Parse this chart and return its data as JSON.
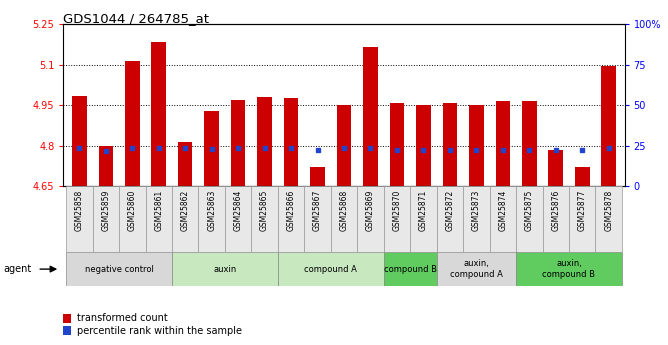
{
  "title": "GDS1044 / 264785_at",
  "samples": [
    "GSM25858",
    "GSM25859",
    "GSM25860",
    "GSM25861",
    "GSM25862",
    "GSM25863",
    "GSM25864",
    "GSM25865",
    "GSM25866",
    "GSM25867",
    "GSM25868",
    "GSM25869",
    "GSM25870",
    "GSM25871",
    "GSM25872",
    "GSM25873",
    "GSM25874",
    "GSM25875",
    "GSM25876",
    "GSM25877",
    "GSM25878"
  ],
  "bar_values": [
    4.985,
    4.8,
    5.115,
    5.185,
    4.815,
    4.93,
    4.97,
    4.98,
    4.975,
    4.72,
    4.95,
    5.165,
    4.96,
    4.95,
    4.96,
    4.95,
    4.965,
    4.965,
    4.785,
    4.72,
    5.095
  ],
  "blue_values": [
    4.793,
    4.782,
    4.793,
    4.793,
    4.793,
    4.788,
    4.793,
    4.793,
    4.793,
    4.785,
    4.793,
    4.793,
    4.785,
    4.785,
    4.785,
    4.785,
    4.785,
    4.785,
    4.785,
    4.785,
    4.793
  ],
  "ymin": 4.65,
  "ymax": 5.25,
  "yticks": [
    4.65,
    4.8,
    4.95,
    5.1,
    5.25
  ],
  "ytick_labels": [
    "4.65",
    "4.8",
    "4.95",
    "5.1",
    "5.25"
  ],
  "right_yticks": [
    0,
    25,
    50,
    75,
    100
  ],
  "right_ytick_labels": [
    "0",
    "25",
    "50",
    "75",
    "100%"
  ],
  "groups": [
    {
      "label": "negative control",
      "start": 0,
      "end": 3,
      "color": "#d8d8d8"
    },
    {
      "label": "auxin",
      "start": 4,
      "end": 7,
      "color": "#c8e8c0"
    },
    {
      "label": "compound A",
      "start": 8,
      "end": 11,
      "color": "#c8e8c0"
    },
    {
      "label": "compound B",
      "start": 12,
      "end": 13,
      "color": "#60cc60"
    },
    {
      "label": "auxin,\ncompound A",
      "start": 14,
      "end": 16,
      "color": "#d8d8d8"
    },
    {
      "label": "auxin,\ncompound B",
      "start": 17,
      "end": 20,
      "color": "#60cc60"
    }
  ],
  "bar_color": "#cc0000",
  "blue_color": "#2244cc",
  "bar_width": 0.55,
  "plot_bg": "#ffffff"
}
